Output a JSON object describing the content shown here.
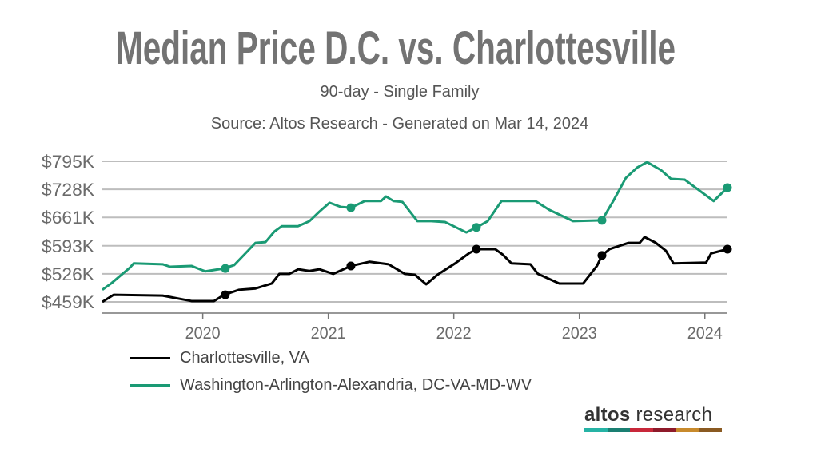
{
  "chart_data": {
    "type": "line",
    "title": "Median Price D.C. vs. Charlottesville",
    "subtitle": "90-day - Single Family",
    "source": "Source: Altos Research - Generated on Mar 14, 2024",
    "xlabel": "",
    "ylabel": "",
    "xlim": [
      2019.2,
      2024.18
    ],
    "ylim": [
      432,
      795
    ],
    "x_ticks": [
      2020,
      2021,
      2022,
      2023,
      2024
    ],
    "x_tick_labels": [
      "2020",
      "2021",
      "2022",
      "2023",
      "2024"
    ],
    "y_ticks": [
      459,
      526,
      593,
      661,
      728,
      795
    ],
    "y_tick_labels": [
      "$459K",
      "$526K",
      "$593K",
      "$661K",
      "$728K",
      "$795K"
    ],
    "grid": true,
    "legend_position": "bottom-left",
    "marker_x": [
      2020.18,
      2021.18,
      2022.18,
      2023.18,
      2024.18
    ],
    "series": [
      {
        "name": "Charlottesville, VA",
        "color": "#000000",
        "points": [
          [
            2019.2,
            459
          ],
          [
            2019.29,
            476
          ],
          [
            2019.68,
            474
          ],
          [
            2019.91,
            461
          ],
          [
            2020.09,
            461
          ],
          [
            2020.17,
            476
          ],
          [
            2020.29,
            488
          ],
          [
            2020.42,
            491
          ],
          [
            2020.55,
            503
          ],
          [
            2020.61,
            526
          ],
          [
            2020.69,
            526
          ],
          [
            2020.76,
            537
          ],
          [
            2020.85,
            533
          ],
          [
            2020.93,
            537
          ],
          [
            2021.04,
            526
          ],
          [
            2021.18,
            545
          ],
          [
            2021.33,
            555
          ],
          [
            2021.48,
            549
          ],
          [
            2021.61,
            526
          ],
          [
            2021.69,
            524
          ],
          [
            2021.78,
            501
          ],
          [
            2021.87,
            524
          ],
          [
            2022.01,
            551
          ],
          [
            2022.12,
            575
          ],
          [
            2022.18,
            585
          ],
          [
            2022.33,
            585
          ],
          [
            2022.39,
            572
          ],
          [
            2022.46,
            551
          ],
          [
            2022.61,
            549
          ],
          [
            2022.67,
            526
          ],
          [
            2022.84,
            503
          ],
          [
            2023.03,
            503
          ],
          [
            2023.14,
            545
          ],
          [
            2023.18,
            570
          ],
          [
            2023.24,
            585
          ],
          [
            2023.39,
            600
          ],
          [
            2023.48,
            600
          ],
          [
            2023.52,
            614
          ],
          [
            2023.61,
            600
          ],
          [
            2023.69,
            581
          ],
          [
            2023.75,
            551
          ],
          [
            2024.01,
            553
          ],
          [
            2024.05,
            575
          ],
          [
            2024.18,
            585
          ]
        ]
      },
      {
        "name": "Washington-Arlington-Alexandria, DC-VA-MD-WV",
        "color": "#1a9a74",
        "points": [
          [
            2019.2,
            488
          ],
          [
            2019.27,
            503
          ],
          [
            2019.42,
            541
          ],
          [
            2019.45,
            551
          ],
          [
            2019.68,
            549
          ],
          [
            2019.74,
            543
          ],
          [
            2019.91,
            545
          ],
          [
            2020.02,
            532
          ],
          [
            2020.17,
            539
          ],
          [
            2020.25,
            547
          ],
          [
            2020.34,
            575
          ],
          [
            2020.42,
            600
          ],
          [
            2020.5,
            602
          ],
          [
            2020.57,
            627
          ],
          [
            2020.63,
            640
          ],
          [
            2020.76,
            640
          ],
          [
            2020.85,
            652
          ],
          [
            2020.93,
            675
          ],
          [
            2021.01,
            696
          ],
          [
            2021.1,
            686
          ],
          [
            2021.18,
            684
          ],
          [
            2021.29,
            700
          ],
          [
            2021.42,
            700
          ],
          [
            2021.46,
            711
          ],
          [
            2021.52,
            700
          ],
          [
            2021.59,
            698
          ],
          [
            2021.71,
            652
          ],
          [
            2021.82,
            652
          ],
          [
            2021.93,
            650
          ],
          [
            2022.1,
            625
          ],
          [
            2022.18,
            637
          ],
          [
            2022.27,
            652
          ],
          [
            2022.38,
            700
          ],
          [
            2022.65,
            700
          ],
          [
            2022.76,
            679
          ],
          [
            2022.95,
            652
          ],
          [
            2023.18,
            654
          ],
          [
            2023.27,
            700
          ],
          [
            2023.37,
            755
          ],
          [
            2023.46,
            780
          ],
          [
            2023.54,
            793
          ],
          [
            2023.65,
            774
          ],
          [
            2023.73,
            753
          ],
          [
            2023.84,
            751
          ],
          [
            2024.07,
            700
          ],
          [
            2024.18,
            732
          ]
        ]
      }
    ]
  },
  "logo": {
    "bold": "altos",
    "light": " research",
    "colors": [
      "#26b3a5",
      "#1a7f72",
      "#c8283a",
      "#8e1a2a",
      "#c88a2c",
      "#8a5a22"
    ]
  }
}
